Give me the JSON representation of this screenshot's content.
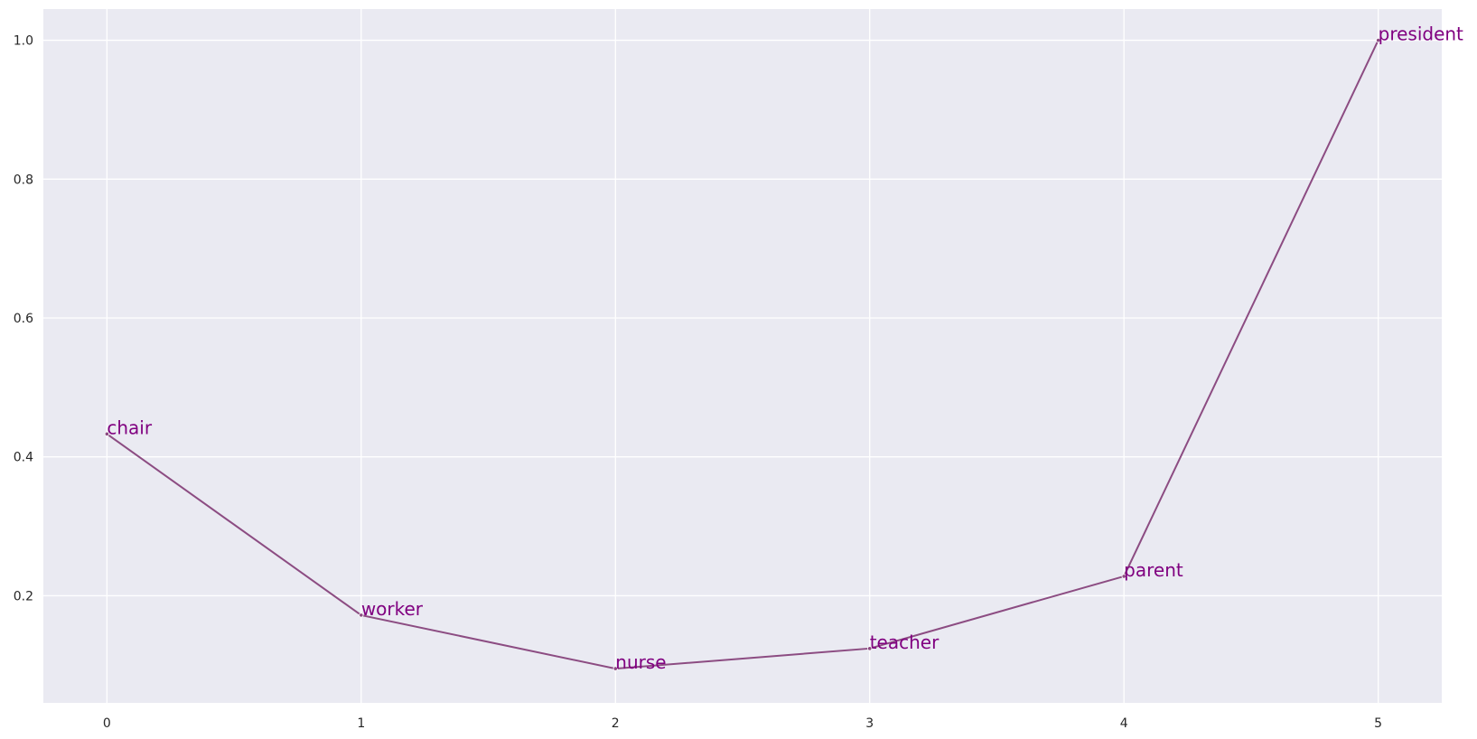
{
  "chart_data": {
    "type": "line",
    "title": "",
    "xlabel": "",
    "ylabel": "",
    "x": [
      0,
      1,
      2,
      3,
      4,
      5
    ],
    "series": [
      {
        "values": [
          0.433,
          0.172,
          0.095,
          0.124,
          0.228,
          1.0
        ],
        "labels": [
          "chair",
          "worker",
          "nurse",
          "teacher",
          "parent",
          "president"
        ]
      }
    ],
    "xticks": [
      0,
      1,
      2,
      3,
      4,
      5
    ],
    "xtick_labels": [
      "0",
      "1",
      "2",
      "3",
      "4",
      "5"
    ],
    "yticks": [
      0.2,
      0.4,
      0.6,
      0.8,
      1.0
    ],
    "ytick_labels": [
      "0.2",
      "0.4",
      "0.6",
      "0.8",
      "1.0"
    ],
    "xlim": [
      -0.25,
      5.25
    ],
    "ylim": [
      0.0457,
      1.045
    ],
    "grid": true,
    "legend": "none",
    "colors": {
      "background": "#eaeaf2",
      "grid": "#ffffff",
      "line": "#8c4c82",
      "label": "#800080"
    }
  }
}
